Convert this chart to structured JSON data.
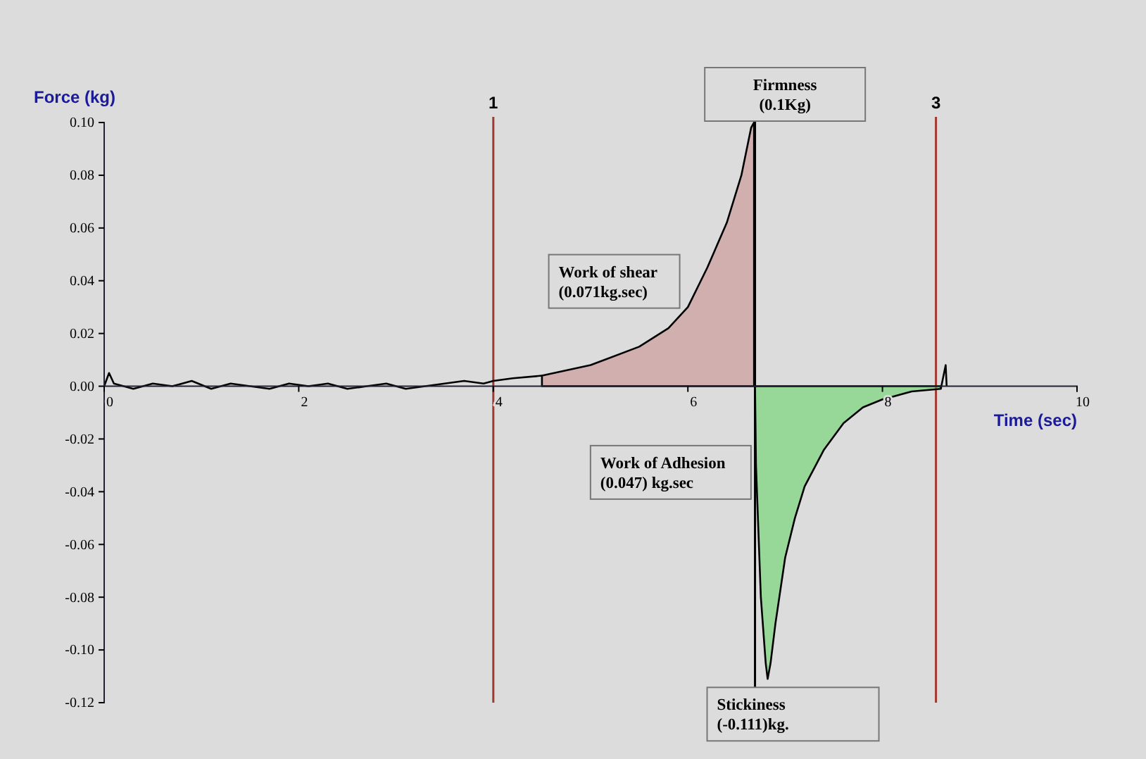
{
  "chart_data": {
    "type": "line",
    "xlabel": "Time (sec)",
    "ylabel": "Force (kg)",
    "xlim": [
      0,
      10
    ],
    "ylim": [
      -0.12,
      0.1
    ],
    "xticks": [
      0,
      2,
      4,
      6,
      8,
      10
    ],
    "yticks": [
      {
        "value": 0.1,
        "label": "0.10"
      },
      {
        "value": 0.08,
        "label": "0.08"
      },
      {
        "value": 0.06,
        "label": "0.06"
      },
      {
        "value": 0.04,
        "label": "0.04"
      },
      {
        "value": 0.02,
        "label": "0.02"
      },
      {
        "value": 0,
        "label": "0.00"
      },
      {
        "value": -0.02,
        "label": "-0.02"
      },
      {
        "value": -0.04,
        "label": "-0.04"
      },
      {
        "value": -0.06,
        "label": "-0.06"
      },
      {
        "value": -0.08,
        "label": "-0.08"
      },
      {
        "value": -0.1,
        "label": "-0.10"
      },
      {
        "value": -0.12,
        "label": "-0.12"
      }
    ],
    "grid": false,
    "series": [
      {
        "color": "#000000",
        "x": [
          0,
          0.05,
          0.1,
          0.3,
          0.5,
          0.7,
          0.9,
          1.1,
          1.3,
          1.5,
          1.7,
          1.9,
          2.1,
          2.3,
          2.5,
          2.7,
          2.9,
          3.1,
          3.3,
          3.5,
          3.7,
          3.9,
          4.0,
          4.2,
          4.5
        ],
        "values": [
          0,
          0.005,
          0.001,
          -0.001,
          0.001,
          0,
          0.002,
          -0.001,
          0.001,
          0,
          -0.001,
          0.001,
          0,
          0.001,
          -0.001,
          0,
          0.001,
          -0.001,
          0,
          0.001,
          0.002,
          0.001,
          0.002,
          0.003,
          0.004
        ]
      },
      {
        "type": "area",
        "color": "#c98a8a",
        "x": [
          4.5,
          5.0,
          5.5,
          5.8,
          6.0,
          6.2,
          6.4,
          6.55,
          6.65,
          6.68
        ],
        "values": [
          0.004,
          0.008,
          0.015,
          0.022,
          0.03,
          0.045,
          0.062,
          0.08,
          0.098,
          0.1
        ]
      },
      {
        "type": "area",
        "color": "#5fd35f",
        "x": [
          6.69,
          6.7,
          6.75,
          6.8,
          6.82,
          6.85,
          6.9,
          7.0,
          7.1,
          7.2,
          7.4,
          7.6,
          7.8,
          8.0,
          8.3,
          8.6
        ],
        "values": [
          0,
          -0.03,
          -0.08,
          -0.105,
          -0.111,
          -0.105,
          -0.09,
          -0.065,
          -0.05,
          -0.038,
          -0.024,
          -0.014,
          -0.008,
          -0.005,
          -0.002,
          -0.001
        ]
      },
      {
        "color": "#000000",
        "x": [
          8.6,
          8.65,
          8.66
        ],
        "values": [
          -0.001,
          0.008,
          0
        ]
      }
    ],
    "ref_lines": [
      {
        "axis": "x",
        "value": 4,
        "color": "#a0392f"
      },
      {
        "axis": "x",
        "value": 8.55,
        "color": "#a0392f"
      },
      {
        "axis": "x",
        "value": 6.69,
        "color": "#000000"
      }
    ],
    "annotations": [
      {
        "text": "Firmness\n(0.1Kg)",
        "x": 6.68,
        "y": 0.1
      },
      {
        "text": "Work of shear\n(0.071kg.sec)",
        "x": 5.8,
        "y": 0.02
      },
      {
        "text": "Work of Adhesion\n(0.047) kg.sec",
        "x": 6.75,
        "y": -0.03
      },
      {
        "text": "Stickiness\n(-0.111)kg.",
        "x": 6.82,
        "y": -0.111
      },
      {
        "text": "1",
        "x": 4,
        "y": 0.1
      },
      {
        "text": "3",
        "x": 8.55,
        "y": 0.1
      }
    ]
  }
}
